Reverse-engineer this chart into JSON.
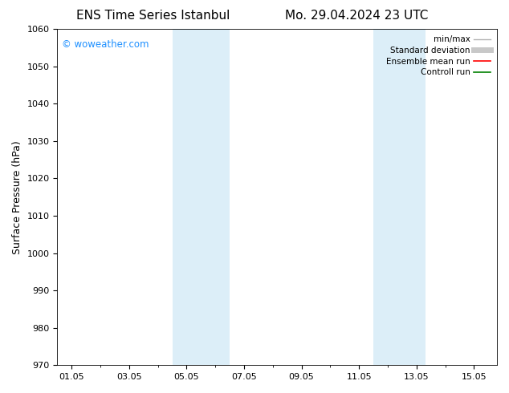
{
  "title_left": "ENS Time Series Istanbul",
  "title_right": "Mo. 29.04.2024 23 UTC",
  "ylabel": "Surface Pressure (hPa)",
  "ylim": [
    970,
    1060
  ],
  "yticks": [
    970,
    980,
    990,
    1000,
    1010,
    1020,
    1030,
    1040,
    1050,
    1060
  ],
  "xtick_labels": [
    "01.05",
    "03.05",
    "05.05",
    "07.05",
    "09.05",
    "11.05",
    "13.05",
    "15.05"
  ],
  "xtick_positions": [
    0,
    2,
    4,
    6,
    8,
    10,
    12,
    14
  ],
  "xlim": [
    -0.5,
    14.8
  ],
  "shaded_bands": [
    {
      "x_start": 3.5,
      "x_end": 5.5
    },
    {
      "x_start": 10.5,
      "x_end": 12.3
    }
  ],
  "shaded_color": "#dceef8",
  "watermark_text": "© woweather.com",
  "watermark_color": "#1e90ff",
  "background_color": "#ffffff",
  "legend_items": [
    {
      "label": "min/max",
      "color": "#b0b0b0",
      "lw": 1.0
    },
    {
      "label": "Standard deviation",
      "color": "#c8c8c8",
      "lw": 5
    },
    {
      "label": "Ensemble mean run",
      "color": "#ff0000",
      "lw": 1.2
    },
    {
      "label": "Controll run",
      "color": "#008000",
      "lw": 1.2
    }
  ],
  "title_fontsize": 11,
  "tick_fontsize": 8,
  "ylabel_fontsize": 9,
  "watermark_fontsize": 8.5,
  "legend_fontsize": 7.5
}
